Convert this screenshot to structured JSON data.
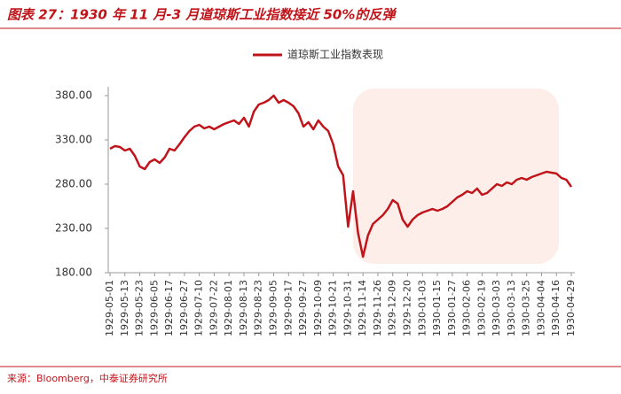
{
  "chart_data": {
    "type": "line",
    "title": "图表 27：1930 年 11 月-3 月道琼斯工业指数接近 50%的反弹",
    "source": "来源：Bloomberg，中泰证券研究所",
    "categories": [
      "1929-05-01",
      null,
      null,
      "1929-05-13",
      null,
      null,
      "1929-05-23",
      null,
      null,
      "1929-06-05",
      null,
      null,
      "1929-06-17",
      null,
      null,
      "1929-06-27",
      null,
      null,
      "1929-07-10",
      null,
      null,
      "1929-07-22",
      null,
      null,
      "1929-08-01",
      null,
      null,
      "1929-08-13",
      null,
      null,
      "1929-08-23",
      null,
      null,
      "1929-09-05",
      null,
      null,
      "1929-09-17",
      null,
      null,
      "1929-09-27",
      null,
      null,
      "1929-10-09",
      null,
      null,
      "1929-10-21",
      null,
      null,
      "1929-10-31",
      null,
      null,
      "1929-11-14",
      null,
      null,
      "1929-11-26",
      null,
      null,
      "1929-12-09",
      null,
      null,
      "1929-12-20",
      null,
      null,
      "1930-01-03",
      null,
      null,
      "1930-01-15",
      null,
      null,
      "1930-01-27",
      null,
      null,
      "1930-02-06",
      null,
      null,
      "1930-02-19",
      null,
      null,
      "1930-03-03",
      null,
      null,
      "1930-03-13",
      null,
      null,
      "1930-03-25",
      null,
      null,
      "1930-04-04",
      null,
      null,
      "1930-04-16",
      null,
      null,
      "1930-04-29"
    ],
    "series": [
      {
        "name": "道琼斯工业指数表现",
        "color": "#c0141b",
        "values": [
          320,
          323,
          322,
          318,
          320,
          312,
          300,
          297,
          305,
          308,
          304,
          310,
          320,
          318,
          325,
          333,
          340,
          345,
          347,
          343,
          345,
          342,
          345,
          348,
          350,
          352,
          348,
          355,
          345,
          362,
          370,
          372,
          375,
          380,
          372,
          375,
          372,
          368,
          360,
          345,
          350,
          342,
          352,
          345,
          340,
          325,
          300,
          290,
          232,
          272,
          225,
          198,
          222,
          235,
          240,
          245,
          252,
          262,
          258,
          240,
          232,
          240,
          245,
          248,
          250,
          252,
          250,
          252,
          255,
          260,
          265,
          268,
          272,
          270,
          275,
          268,
          270,
          275,
          280,
          278,
          282,
          280,
          285,
          287,
          285,
          288,
          290,
          292,
          294,
          293,
          292,
          287,
          285,
          277
        ]
      }
    ],
    "ylim": [
      180,
      390
    ],
    "yticks": [
      {
        "value": 180,
        "label": "180.00"
      },
      {
        "value": 230,
        "label": "230.00"
      },
      {
        "value": 280,
        "label": "280.00"
      },
      {
        "value": 330,
        "label": "330.00"
      },
      {
        "value": 380,
        "label": "380.00"
      }
    ],
    "legend": "top"
  }
}
